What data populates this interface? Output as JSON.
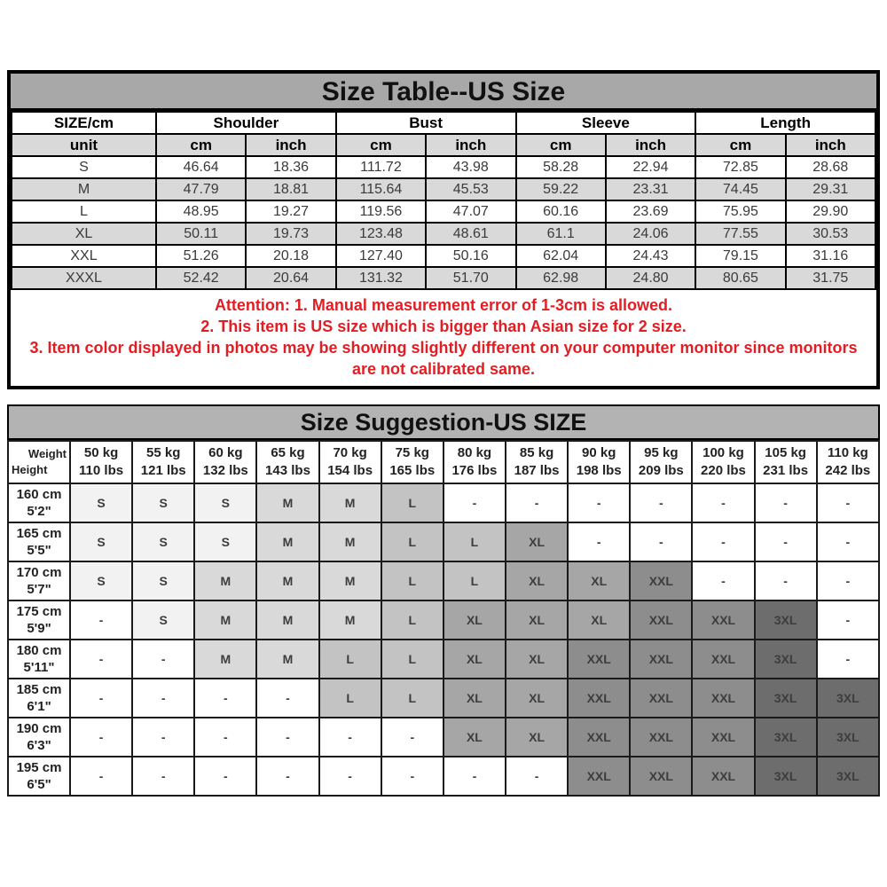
{
  "size_table": {
    "title": "Size Table--US Size",
    "corner_header": "SIZE/cm",
    "unit_label": "unit",
    "groups": [
      "Shoulder",
      "Bust",
      "Sleeve",
      "Length"
    ],
    "unit_row": [
      "cm",
      "inch",
      "cm",
      "inch",
      "cm",
      "inch",
      "cm",
      "inch"
    ],
    "rows": [
      {
        "size": "S",
        "values": [
          "46.64",
          "18.36",
          "111.72",
          "43.98",
          "58.28",
          "22.94",
          "72.85",
          "28.68"
        ]
      },
      {
        "size": "M",
        "values": [
          "47.79",
          "18.81",
          "115.64",
          "45.53",
          "59.22",
          "23.31",
          "74.45",
          "29.31"
        ]
      },
      {
        "size": "L",
        "values": [
          "48.95",
          "19.27",
          "119.56",
          "47.07",
          "60.16",
          "23.69",
          "75.95",
          "29.90"
        ]
      },
      {
        "size": "XL",
        "values": [
          "50.11",
          "19.73",
          "123.48",
          "48.61",
          "61.1",
          "24.06",
          "77.55",
          "30.53"
        ]
      },
      {
        "size": "XXL",
        "values": [
          "51.26",
          "20.18",
          "127.40",
          "50.16",
          "62.04",
          "24.43",
          "79.15",
          "31.16"
        ]
      },
      {
        "size": "XXXL",
        "values": [
          "52.42",
          "20.64",
          "131.32",
          "51.70",
          "62.98",
          "24.80",
          "80.65",
          "31.75"
        ]
      }
    ]
  },
  "attention": {
    "color": "#e21e24",
    "lines": [
      "Attention:  1. Manual measurement error of 1-3cm is allowed.",
      "2. This item is US size which is bigger than Asian size for 2 size.",
      "3. Item color displayed in photos may be showing slightly different on your computer monitor since monitors",
      "are not calibrated same."
    ]
  },
  "suggestion_table": {
    "title": "Size Suggestion-US SIZE",
    "corner": {
      "top": "Weight",
      "bottom": "Height"
    },
    "weights": [
      {
        "kg": "50 kg",
        "lbs": "110 lbs"
      },
      {
        "kg": "55 kg",
        "lbs": "121 lbs"
      },
      {
        "kg": "60 kg",
        "lbs": "132 lbs"
      },
      {
        "kg": "65 kg",
        "lbs": "143 lbs"
      },
      {
        "kg": "70 kg",
        "lbs": "154 lbs"
      },
      {
        "kg": "75 kg",
        "lbs": "165 lbs"
      },
      {
        "kg": "80 kg",
        "lbs": "176 lbs"
      },
      {
        "kg": "85 kg",
        "lbs": "187 lbs"
      },
      {
        "kg": "90 kg",
        "lbs": "198 lbs"
      },
      {
        "kg": "95 kg",
        "lbs": "209 lbs"
      },
      {
        "kg": "100 kg",
        "lbs": "220 lbs"
      },
      {
        "kg": "105 kg",
        "lbs": "231 lbs"
      },
      {
        "kg": "110 kg",
        "lbs": "242 lbs"
      }
    ],
    "size_colors": {
      "S": "#f2f2f2",
      "M": "#d9d9d9",
      "L": "#c3c3c3",
      "XL": "#a6a6a6",
      "XXL": "#8d8d8d",
      "3XL": "#6d6d6d",
      "-": "#ffffff"
    },
    "rows": [
      {
        "height_cm": "160 cm",
        "height_ft": "5'2\"",
        "sizes": [
          "S",
          "S",
          "S",
          "M",
          "M",
          "L",
          "-",
          "-",
          "-",
          "-",
          "-",
          "-",
          "-"
        ]
      },
      {
        "height_cm": "165 cm",
        "height_ft": "5'5\"",
        "sizes": [
          "S",
          "S",
          "S",
          "M",
          "M",
          "L",
          "L",
          "XL",
          "-",
          "-",
          "-",
          "-",
          "-"
        ]
      },
      {
        "height_cm": "170 cm",
        "height_ft": "5'7\"",
        "sizes": [
          "S",
          "S",
          "M",
          "M",
          "M",
          "L",
          "L",
          "XL",
          "XL",
          "XXL",
          "-",
          "-",
          "-"
        ]
      },
      {
        "height_cm": "175 cm",
        "height_ft": "5'9\"",
        "sizes": [
          "-",
          "S",
          "M",
          "M",
          "M",
          "L",
          "XL",
          "XL",
          "XL",
          "XXL",
          "XXL",
          "3XL",
          "-"
        ]
      },
      {
        "height_cm": "180 cm",
        "height_ft": "5'11\"",
        "sizes": [
          "-",
          "-",
          "M",
          "M",
          "L",
          "L",
          "XL",
          "XL",
          "XXL",
          "XXL",
          "XXL",
          "3XL",
          "-"
        ]
      },
      {
        "height_cm": "185 cm",
        "height_ft": "6'1\"",
        "sizes": [
          "-",
          "-",
          "-",
          "-",
          "L",
          "L",
          "XL",
          "XL",
          "XXL",
          "XXL",
          "XXL",
          "3XL",
          "3XL"
        ]
      },
      {
        "height_cm": "190 cm",
        "height_ft": "6'3\"",
        "sizes": [
          "-",
          "-",
          "-",
          "-",
          "-",
          "-",
          "XL",
          "XL",
          "XXL",
          "XXL",
          "XXL",
          "3XL",
          "3XL"
        ]
      },
      {
        "height_cm": "195 cm",
        "height_ft": "6'5\"",
        "sizes": [
          "-",
          "-",
          "-",
          "-",
          "-",
          "-",
          "-",
          "-",
          "XXL",
          "XXL",
          "XXL",
          "3XL",
          "3XL"
        ]
      }
    ]
  }
}
